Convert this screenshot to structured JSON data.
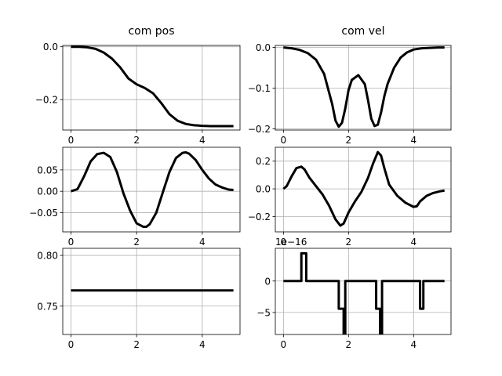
{
  "chart_data": [
    {
      "type": "line",
      "title": "com pos",
      "x_ticks": [
        "0",
        "2",
        "4"
      ],
      "y_ticks": [
        "0.0",
        "−0.2"
      ],
      "xlim": [
        -0.25,
        5.15
      ],
      "ylim": [
        -0.315,
        0.005
      ],
      "series": [
        {
          "x": [
            0,
            0.25,
            0.5,
            0.75,
            1.0,
            1.25,
            1.5,
            1.75,
            2.0,
            2.25,
            2.5,
            2.75,
            3.0,
            3.25,
            3.5,
            3.75,
            4.0,
            4.25,
            4.5,
            4.75,
            4.95
          ],
          "y": [
            0,
            -0.0002,
            -0.002,
            -0.008,
            -0.022,
            -0.045,
            -0.078,
            -0.12,
            -0.142,
            -0.156,
            -0.176,
            -0.213,
            -0.255,
            -0.28,
            -0.292,
            -0.297,
            -0.299,
            -0.3,
            -0.3,
            -0.3,
            -0.3
          ]
        }
      ]
    },
    {
      "type": "line",
      "title": "com vel",
      "x_ticks": [
        "0",
        "2",
        "4"
      ],
      "y_ticks": [
        "0.0",
        "−0.1",
        "−0.2"
      ],
      "xlim": [
        -0.25,
        5.15
      ],
      "ylim": [
        -0.203,
        0.005
      ],
      "series": [
        {
          "x": [
            0,
            0.25,
            0.5,
            0.75,
            1.0,
            1.25,
            1.5,
            1.6,
            1.7,
            1.8,
            1.9,
            2.0,
            2.1,
            2.3,
            2.5,
            2.6,
            2.7,
            2.8,
            2.9,
            3.0,
            3.1,
            3.2,
            3.4,
            3.6,
            3.8,
            4.0,
            4.25,
            4.5,
            4.75,
            4.95
          ],
          "y": [
            0,
            -0.002,
            -0.006,
            -0.014,
            -0.03,
            -0.065,
            -0.14,
            -0.18,
            -0.195,
            -0.185,
            -0.15,
            -0.105,
            -0.08,
            -0.068,
            -0.09,
            -0.13,
            -0.175,
            -0.193,
            -0.19,
            -0.16,
            -0.12,
            -0.09,
            -0.05,
            -0.025,
            -0.012,
            -0.005,
            -0.002,
            -0.001,
            0,
            0
          ]
        }
      ]
    },
    {
      "type": "line",
      "title": "",
      "x_ticks": [
        "0",
        "2",
        "4"
      ],
      "y_ticks": [
        "0.05",
        "0.00",
        "−0.05"
      ],
      "xlim": [
        -0.25,
        5.15
      ],
      "ylim": [
        -0.095,
        0.103
      ],
      "series": [
        {
          "x": [
            0,
            0.2,
            0.4,
            0.6,
            0.8,
            1.0,
            1.2,
            1.4,
            1.6,
            1.8,
            2.0,
            2.2,
            2.3,
            2.4,
            2.6,
            2.8,
            3.0,
            3.2,
            3.4,
            3.5,
            3.6,
            3.8,
            4.0,
            4.2,
            4.4,
            4.6,
            4.8,
            4.95
          ],
          "y": [
            0,
            0.005,
            0.035,
            0.07,
            0.087,
            0.09,
            0.08,
            0.045,
            -0.005,
            -0.045,
            -0.075,
            -0.083,
            -0.083,
            -0.077,
            -0.05,
            -0.002,
            0.045,
            0.078,
            0.09,
            0.091,
            0.088,
            0.073,
            0.05,
            0.03,
            0.016,
            0.009,
            0.004,
            0.003
          ]
        }
      ]
    },
    {
      "type": "line",
      "title": "",
      "x_ticks": [
        "0",
        "2",
        "4"
      ],
      "y_ticks": [
        "0.2",
        "0.0",
        "−0.2"
      ],
      "xlim": [
        -0.25,
        5.15
      ],
      "ylim": [
        -0.31,
        0.3
      ],
      "series": [
        {
          "x": [
            0,
            0.1,
            0.25,
            0.4,
            0.55,
            0.65,
            0.8,
            1.0,
            1.2,
            1.4,
            1.6,
            1.75,
            1.85,
            2.0,
            2.2,
            2.4,
            2.6,
            2.75,
            2.9,
            3.0,
            3.1,
            3.25,
            3.5,
            3.75,
            4.0,
            4.1,
            4.2,
            4.4,
            4.6,
            4.8,
            4.95
          ],
          "y": [
            0,
            0.02,
            0.09,
            0.15,
            0.16,
            0.14,
            0.08,
            0.02,
            -0.04,
            -0.12,
            -0.22,
            -0.265,
            -0.25,
            -0.17,
            -0.09,
            -0.02,
            0.08,
            0.18,
            0.265,
            0.24,
            0.15,
            0.03,
            -0.05,
            -0.1,
            -0.13,
            -0.125,
            -0.09,
            -0.05,
            -0.03,
            -0.018,
            -0.012
          ]
        }
      ]
    },
    {
      "type": "line",
      "title": "",
      "x_ticks": [
        "0",
        "2",
        "4"
      ],
      "y_ticks": [
        "0.80",
        "0.75"
      ],
      "xlim": [
        -0.25,
        5.15
      ],
      "ylim": [
        0.722,
        0.807
      ],
      "series": [
        {
          "x": [
            0,
            4.95
          ],
          "y": [
            0.7655,
            0.7655
          ]
        }
      ]
    },
    {
      "type": "line",
      "title": "",
      "offset_label": "1e−16",
      "x_ticks": [
        "0",
        "2",
        "4"
      ],
      "y_ticks": [
        "0",
        "−5"
      ],
      "xlim": [
        -0.25,
        5.15
      ],
      "ylim": [
        -8.5,
        5.2
      ],
      "series": [
        {
          "x": [
            0,
            0.55,
            0.55,
            0.7,
            0.7,
            1.7,
            1.7,
            1.85,
            1.85,
            1.9,
            1.9,
            2.85,
            2.85,
            2.97,
            2.97,
            3.03,
            3.03,
            4.2,
            4.2,
            4.3,
            4.3,
            4.95
          ],
          "y": [
            0,
            0,
            4.4,
            4.4,
            0,
            0,
            -4.4,
            -4.4,
            -8.9,
            -8.9,
            0,
            0,
            -4.4,
            -4.4,
            -8.9,
            -8.9,
            0,
            0,
            -4.4,
            -4.4,
            0,
            0
          ]
        }
      ]
    }
  ]
}
